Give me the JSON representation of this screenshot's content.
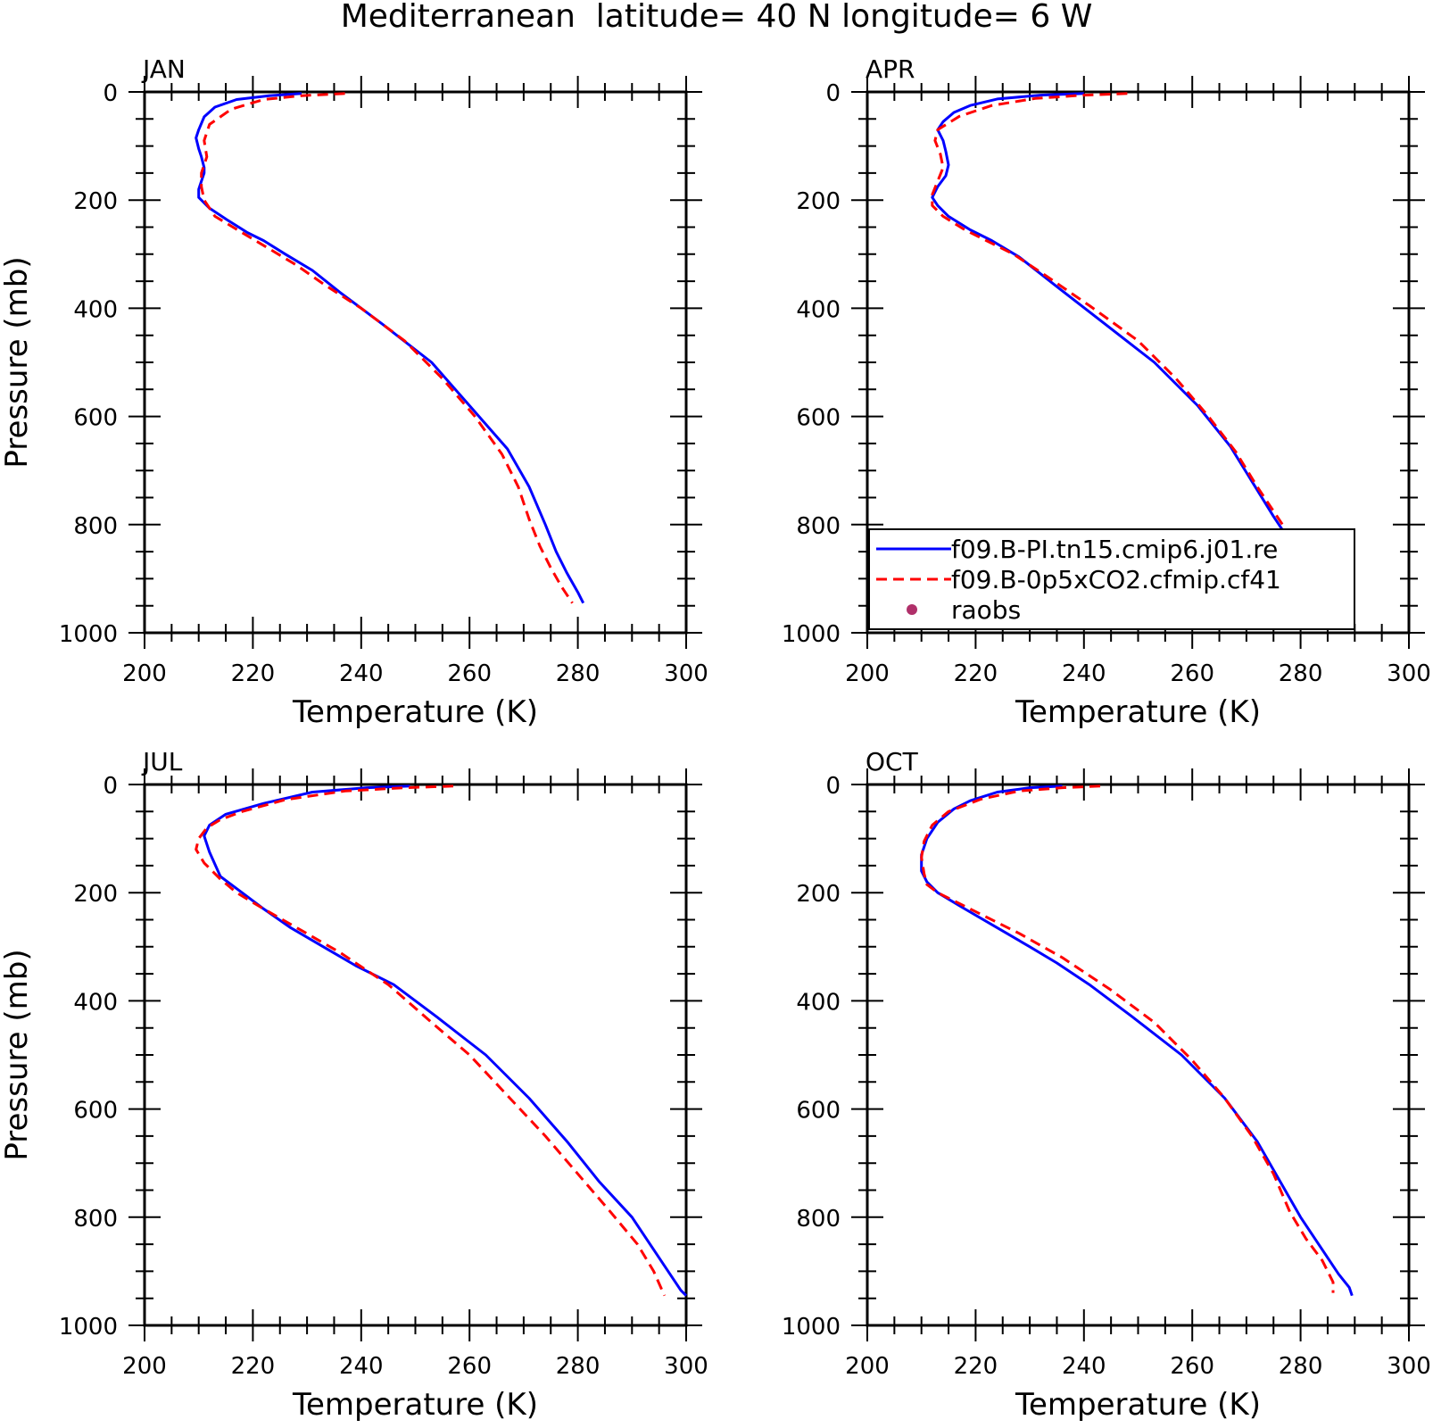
{
  "chart_data": {
    "type": "line",
    "title": "Mediterranean  latitude= 40 N longitude= 6 W",
    "xlabel": "Temperature (K)",
    "ylabel": "Pressure (mb)",
    "xlim": [
      200,
      300
    ],
    "ylim": [
      1000,
      0
    ],
    "xticks": [
      "200",
      "220",
      "240",
      "260",
      "280",
      "300"
    ],
    "yticks": [
      "0",
      "200",
      "400",
      "600",
      "800",
      "1000"
    ],
    "series_styles": [
      {
        "name": "f09.B-PI.tn15.cmip6.j01.re",
        "color": "#0000ff",
        "dash": "solid"
      },
      {
        "name": "f09.B-0p5xCO2.cfmip.cf41",
        "color": "#ff0000",
        "dash": "dashed"
      },
      {
        "name": "raobs",
        "color": "#b0306a",
        "marker": "dot"
      }
    ],
    "legend": {
      "panel": 1,
      "entries": [
        "f09.B-PI.tn15.cmip6.j01.re",
        "f09.B-0p5xCO2.cfmip.cf41",
        "raobs"
      ]
    },
    "panels": [
      {
        "name": "JAN",
        "series": [
          {
            "name": "f09.B-PI.tn15.cmip6.j01.re",
            "points": [
              [
                229,
                3
              ],
              [
                223,
                7
              ],
              [
                217,
                14
              ],
              [
                213,
                28
              ],
              [
                211,
                46
              ],
              [
                210,
                70
              ],
              [
                209.5,
                85
              ],
              [
                210,
                105
              ],
              [
                210.5,
                120
              ],
              [
                211,
                140
              ],
              [
                211,
                150
              ],
              [
                210.5,
                165
              ],
              [
                210,
                180
              ],
              [
                210,
                195
              ],
              [
                212,
                215
              ],
              [
                215,
                235
              ],
              [
                219,
                260
              ],
              [
                222,
                275
              ],
              [
                226,
                300
              ],
              [
                231,
                330
              ],
              [
                236,
                370
              ],
              [
                244,
                430
              ],
              [
                253,
                500
              ],
              [
                260,
                580
              ],
              [
                267,
                660
              ],
              [
                271,
                730
              ],
              [
                274,
                800
              ],
              [
                276,
                850
              ],
              [
                278,
                890
              ],
              [
                280,
                925
              ],
              [
                281,
                945
              ]
            ]
          },
          {
            "name": "f09.B-0p5xCO2.cfmip.cf41",
            "points": [
              [
                237,
                3
              ],
              [
                229,
                7
              ],
              [
                222,
                14
              ],
              [
                216,
                32
              ],
              [
                212,
                60
              ],
              [
                211,
                90
              ],
              [
                211.5,
                120
              ],
              [
                210.5,
                150
              ],
              [
                210.5,
                175
              ],
              [
                211,
                200
              ],
              [
                213,
                230
              ],
              [
                218,
                260
              ],
              [
                223,
                290
              ],
              [
                228,
                320
              ],
              [
                233,
                355
              ],
              [
                240,
                400
              ],
              [
                248,
                460
              ],
              [
                255,
                530
              ],
              [
                261,
                600
              ],
              [
                266,
                670
              ],
              [
                269,
                730
              ],
              [
                271,
                790
              ],
              [
                273,
                840
              ],
              [
                275,
                880
              ],
              [
                277,
                915
              ],
              [
                279,
                945
              ]
            ]
          }
        ]
      },
      {
        "name": "APR",
        "series": [
          {
            "name": "f09.B-PI.tn15.cmip6.j01.re",
            "points": [
              [
                240,
                3
              ],
              [
                232,
                6
              ],
              [
                224,
                13
              ],
              [
                219,
                25
              ],
              [
                216,
                38
              ],
              [
                214,
                55
              ],
              [
                213,
                70
              ],
              [
                214,
                90
              ],
              [
                214.5,
                110
              ],
              [
                215,
                135
              ],
              [
                214.5,
                155
              ],
              [
                213,
                175
              ],
              [
                212,
                195
              ],
              [
                213,
                210
              ],
              [
                215,
                230
              ],
              [
                219,
                255
              ],
              [
                223,
                275
              ],
              [
                228,
                305
              ],
              [
                235,
                360
              ],
              [
                244,
                430
              ],
              [
                253,
                500
              ],
              [
                261,
                580
              ],
              [
                267,
                655
              ],
              [
                271,
                720
              ],
              [
                275,
                785
              ],
              [
                279,
                845
              ],
              [
                282,
                895
              ],
              [
                284,
                925
              ],
              [
                286,
                940
              ]
            ]
          },
          {
            "name": "f09.B-0p5xCO2.cfmip.cf41",
            "points": [
              [
                248,
                3
              ],
              [
                240,
                6
              ],
              [
                231,
                12
              ],
              [
                223,
                25
              ],
              [
                217,
                45
              ],
              [
                213,
                70
              ],
              [
                212.5,
                90
              ],
              [
                213.5,
                115
              ],
              [
                214,
                140
              ],
              [
                213,
                165
              ],
              [
                212,
                190
              ],
              [
                212,
                210
              ],
              [
                214,
                230
              ],
              [
                218,
                255
              ],
              [
                222,
                275
              ],
              [
                227,
                300
              ],
              [
                233,
                340
              ],
              [
                241,
                395
              ],
              [
                250,
                460
              ],
              [
                257,
                530
              ],
              [
                263,
                600
              ],
              [
                268,
                665
              ],
              [
                272,
                730
              ],
              [
                276,
                790
              ],
              [
                280,
                850
              ],
              [
                282,
                890
              ],
              [
                284,
                925
              ],
              [
                285,
                945
              ]
            ]
          }
        ]
      },
      {
        "name": "JUL",
        "series": [
          {
            "name": "f09.B-PI.tn15.cmip6.j01.re",
            "points": [
              [
                249,
                3
              ],
              [
                241,
                6
              ],
              [
                231,
                14
              ],
              [
                222,
                35
              ],
              [
                215,
                55
              ],
              [
                212,
                75
              ],
              [
                211,
                95
              ],
              [
                212,
                125
              ],
              [
                214,
                170
              ],
              [
                218,
                200
              ],
              [
                222,
                230
              ],
              [
                227,
                265
              ],
              [
                233,
                300
              ],
              [
                239,
                335
              ],
              [
                246,
                370
              ],
              [
                254,
                430
              ],
              [
                263,
                500
              ],
              [
                271,
                580
              ],
              [
                278,
                660
              ],
              [
                284,
                735
              ],
              [
                290,
                800
              ],
              [
                294,
                860
              ],
              [
                297,
                905
              ],
              [
                299,
                935
              ],
              [
                300,
                945
              ]
            ]
          },
          {
            "name": "f09.B-0p5xCO2.cfmip.cf41",
            "points": [
              [
                257,
                3
              ],
              [
                248,
                6
              ],
              [
                237,
                12
              ],
              [
                226,
                28
              ],
              [
                218,
                50
              ],
              [
                214,
                65
              ],
              [
                211.5,
                80
              ],
              [
                210,
                100
              ],
              [
                209.5,
                120
              ],
              [
                211,
                145
              ],
              [
                214,
                175
              ],
              [
                217,
                200
              ],
              [
                222,
                230
              ],
              [
                229,
                270
              ],
              [
                236,
                310
              ],
              [
                245,
                370
              ],
              [
                253,
                440
              ],
              [
                260,
                500
              ],
              [
                267,
                575
              ],
              [
                274,
                650
              ],
              [
                280,
                720
              ],
              [
                286,
                790
              ],
              [
                291,
                850
              ],
              [
                294,
                900
              ],
              [
                296,
                945
              ]
            ]
          }
        ]
      },
      {
        "name": "OCT",
        "series": [
          {
            "name": "f09.B-PI.tn15.cmip6.j01.re",
            "points": [
              [
                236,
                3
              ],
              [
                230,
                6
              ],
              [
                224,
                14
              ],
              [
                219,
                30
              ],
              [
                216,
                45
              ],
              [
                213,
                70
              ],
              [
                211,
                100
              ],
              [
                210,
                130
              ],
              [
                210,
                160
              ],
              [
                211,
                180
              ],
              [
                213,
                200
              ],
              [
                218,
                230
              ],
              [
                224,
                265
              ],
              [
                230,
                300
              ],
              [
                235,
                330
              ],
              [
                241,
                370
              ],
              [
                249,
                430
              ],
              [
                258,
                500
              ],
              [
                266,
                580
              ],
              [
                272,
                660
              ],
              [
                276,
                730
              ],
              [
                280,
                800
              ],
              [
                284,
                860
              ],
              [
                287,
                905
              ],
              [
                289,
                930
              ],
              [
                289.5,
                945
              ]
            ]
          },
          {
            "name": "f09.B-0p5xCO2.cfmip.cf41",
            "points": [
              [
                243,
                3
              ],
              [
                236,
                6
              ],
              [
                228,
                12
              ],
              [
                221,
                27
              ],
              [
                215,
                50
              ],
              [
                212,
                75
              ],
              [
                210.5,
                105
              ],
              [
                210,
                135
              ],
              [
                210.5,
                165
              ],
              [
                211,
                185
              ],
              [
                213,
                200
              ],
              [
                217,
                220
              ],
              [
                222,
                245
              ],
              [
                228,
                275
              ],
              [
                236,
                320
              ],
              [
                245,
                380
              ],
              [
                253,
                440
              ],
              [
                260,
                510
              ],
              [
                266,
                580
              ],
              [
                271,
                650
              ],
              [
                275,
                720
              ],
              [
                278,
                790
              ],
              [
                281,
                840
              ],
              [
                284,
                880
              ],
              [
                286,
                920
              ],
              [
                286,
                940
              ]
            ]
          }
        ]
      }
    ]
  }
}
